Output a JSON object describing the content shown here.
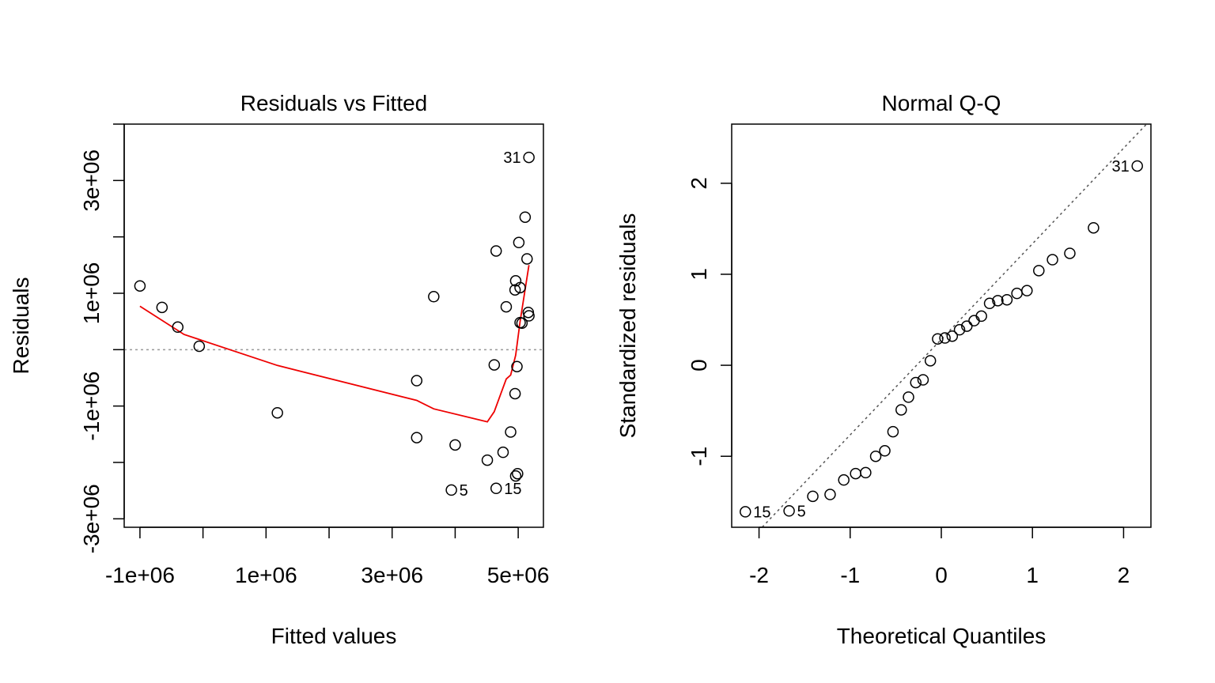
{
  "chart_data": [
    {
      "type": "scatter",
      "title": "Residuals vs Fitted",
      "xlabel": "Fitted values",
      "ylabel": "Residuals",
      "xlim": [
        -1250000,
        5400000
      ],
      "ylim": [
        -3150000,
        4000000
      ],
      "xticks": [
        -1000000,
        0,
        1000000,
        2000000,
        3000000,
        4000000,
        5000000
      ],
      "xtick_labels": [
        {
          "value": -1000000,
          "label": "-1e+06"
        },
        {
          "value": 1000000,
          "label": "1e+06"
        },
        {
          "value": 3000000,
          "label": "3e+06"
        },
        {
          "value": 5000000,
          "label": "5e+06"
        }
      ],
      "yticks": [
        -3000000,
        -2000000,
        -1000000,
        0,
        1000000,
        2000000,
        3000000,
        4000000
      ],
      "ytick_labels": [
        {
          "value": -3000000,
          "label": "-3e+06"
        },
        {
          "value": -1000000,
          "label": "-1e+06"
        },
        {
          "value": 1000000,
          "label": "1e+06"
        },
        {
          "value": 3000000,
          "label": "3e+06"
        }
      ],
      "reference_line": {
        "type": "horizontal",
        "y": 0,
        "style": "dotted",
        "color": "#999999"
      },
      "points": [
        {
          "x": -1000000,
          "y": 1130000
        },
        {
          "x": -650000,
          "y": 750000
        },
        {
          "x": -400000,
          "y": 400000
        },
        {
          "x": -60000,
          "y": 60000
        },
        {
          "x": 1180000,
          "y": -1120000
        },
        {
          "x": 3390000,
          "y": -550000
        },
        {
          "x": 3390000,
          "y": -1560000
        },
        {
          "x": 3660000,
          "y": 940000
        },
        {
          "x": 4000000,
          "y": -1690000
        },
        {
          "x": 3940000,
          "y": -2490000,
          "label": "5"
        },
        {
          "x": 4510000,
          "y": -1960000
        },
        {
          "x": 4620000,
          "y": -270000
        },
        {
          "x": 4650000,
          "y": 1750000
        },
        {
          "x": 4650000,
          "y": -2460000,
          "label": "15"
        },
        {
          "x": 4760000,
          "y": -1820000
        },
        {
          "x": 4810000,
          "y": 760000
        },
        {
          "x": 4880000,
          "y": -1460000
        },
        {
          "x": 4950000,
          "y": -780000
        },
        {
          "x": 4950000,
          "y": 1060000
        },
        {
          "x": 4960000,
          "y": 1220000
        },
        {
          "x": 4960000,
          "y": -2240000
        },
        {
          "x": 4980000,
          "y": -300000
        },
        {
          "x": 4990000,
          "y": -2200000
        },
        {
          "x": 5010000,
          "y": 1900000
        },
        {
          "x": 5030000,
          "y": 1100000
        },
        {
          "x": 5030000,
          "y": 480000
        },
        {
          "x": 5060000,
          "y": 470000
        },
        {
          "x": 5110000,
          "y": 2350000
        },
        {
          "x": 5140000,
          "y": 1610000
        },
        {
          "x": 5160000,
          "y": 660000
        },
        {
          "x": 5170000,
          "y": 600000
        },
        {
          "x": 5170000,
          "y": 3410000,
          "label": "31"
        }
      ],
      "smoother": {
        "color": "#ee0000",
        "points": [
          {
            "x": -1000000,
            "y": 770000
          },
          {
            "x": -300000,
            "y": 270000
          },
          {
            "x": 1180000,
            "y": -280000
          },
          {
            "x": 3390000,
            "y": -900000
          },
          {
            "x": 3660000,
            "y": -1050000
          },
          {
            "x": 4510000,
            "y": -1280000
          },
          {
            "x": 4620000,
            "y": -1100000
          },
          {
            "x": 4810000,
            "y": -520000
          },
          {
            "x": 4880000,
            "y": -450000
          },
          {
            "x": 4960000,
            "y": -100000
          },
          {
            "x": 5030000,
            "y": 500000
          },
          {
            "x": 5170000,
            "y": 1500000
          }
        ]
      }
    },
    {
      "type": "scatter",
      "title": "Normal Q-Q",
      "xlabel": "Theoretical Quantiles",
      "ylabel": "Standardized residuals",
      "xlim": [
        -2.3,
        2.3
      ],
      "ylim": [
        -1.78,
        2.65
      ],
      "xticks": [
        -2,
        -1,
        0,
        1,
        2
      ],
      "xtick_labels": [
        {
          "value": -2,
          "label": "-2"
        },
        {
          "value": -1,
          "label": "-1"
        },
        {
          "value": 0,
          "label": "0"
        },
        {
          "value": 1,
          "label": "1"
        },
        {
          "value": 2,
          "label": "2"
        }
      ],
      "yticks": [
        -1,
        0,
        1,
        2
      ],
      "ytick_labels": [
        {
          "value": -1,
          "label": "-1"
        },
        {
          "value": 0,
          "label": "0"
        },
        {
          "value": 1,
          "label": "1"
        },
        {
          "value": 2,
          "label": "2"
        }
      ],
      "reference_line": {
        "type": "line",
        "x1": -2.3,
        "y1": -2.13,
        "x2": 2.3,
        "y2": 2.7,
        "style": "dotted",
        "color": "#555555"
      },
      "points": [
        {
          "x": -2.15,
          "y": -1.61,
          "label": "15"
        },
        {
          "x": -1.67,
          "y": -1.6,
          "label": "5"
        },
        {
          "x": -1.41,
          "y": -1.44
        },
        {
          "x": -1.22,
          "y": -1.42
        },
        {
          "x": -1.07,
          "y": -1.26
        },
        {
          "x": -0.94,
          "y": -1.19
        },
        {
          "x": -0.83,
          "y": -1.18
        },
        {
          "x": -0.72,
          "y": -1.0
        },
        {
          "x": -0.62,
          "y": -0.94
        },
        {
          "x": -0.53,
          "y": -0.73
        },
        {
          "x": -0.44,
          "y": -0.49
        },
        {
          "x": -0.36,
          "y": -0.35
        },
        {
          "x": -0.28,
          "y": -0.19
        },
        {
          "x": -0.2,
          "y": -0.16
        },
        {
          "x": -0.12,
          "y": 0.05
        },
        {
          "x": -0.04,
          "y": 0.29
        },
        {
          "x": 0.04,
          "y": 0.3
        },
        {
          "x": 0.12,
          "y": 0.32
        },
        {
          "x": 0.2,
          "y": 0.39
        },
        {
          "x": 0.28,
          "y": 0.43
        },
        {
          "x": 0.36,
          "y": 0.49
        },
        {
          "x": 0.44,
          "y": 0.54
        },
        {
          "x": 0.53,
          "y": 0.68
        },
        {
          "x": 0.62,
          "y": 0.71
        },
        {
          "x": 0.72,
          "y": 0.72
        },
        {
          "x": 0.83,
          "y": 0.79
        },
        {
          "x": 0.94,
          "y": 0.82
        },
        {
          "x": 1.07,
          "y": 1.04
        },
        {
          "x": 1.22,
          "y": 1.16
        },
        {
          "x": 1.41,
          "y": 1.23
        },
        {
          "x": 1.67,
          "y": 1.51
        },
        {
          "x": 2.15,
          "y": 2.19,
          "label": "31"
        }
      ]
    }
  ]
}
